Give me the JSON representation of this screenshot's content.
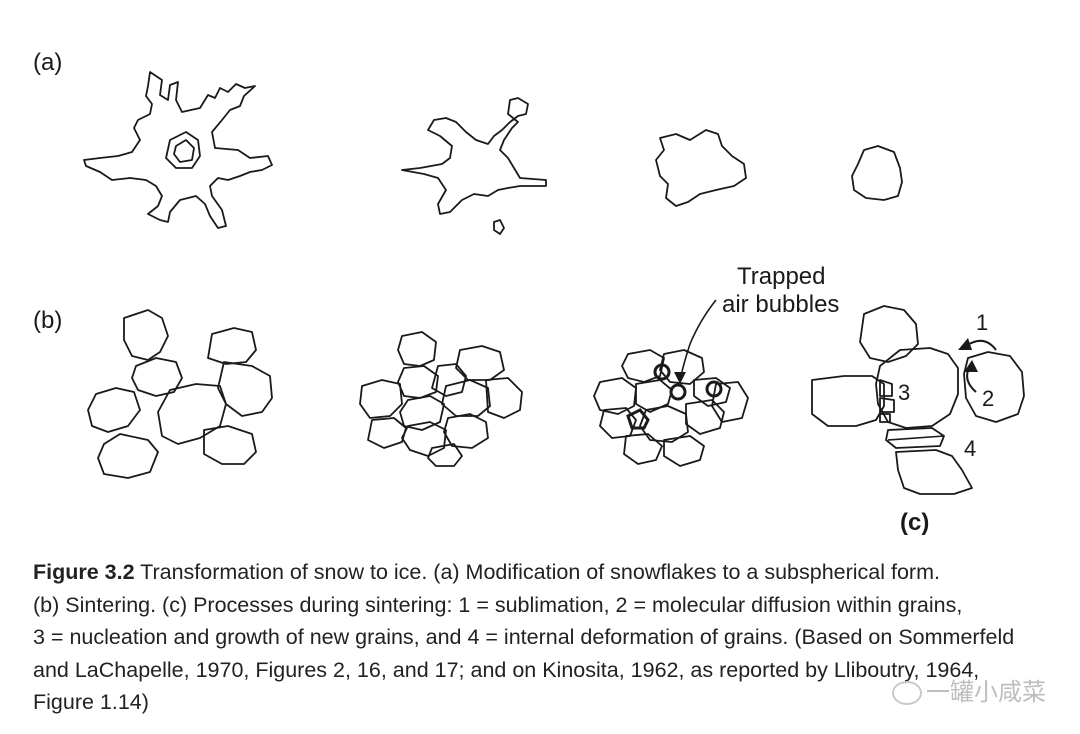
{
  "panels": {
    "a": "(a)",
    "b": "(b)",
    "c": "(c)"
  },
  "annotations": {
    "trapped_line1": "Trapped",
    "trapped_line2": "air bubbles",
    "proc1": "1",
    "proc2": "2",
    "proc3": "3",
    "proc4": "4"
  },
  "caption": {
    "label": "Figure 3.2",
    "line1": " Transformation of snow to ice. (a) Modification of snowflakes to a subspherical form.",
    "line2": "(b) Sintering. (c) Processes during sintering: 1 = sublimation, 2 = molecular diffusion within grains,",
    "line3": "3 = nucleation and growth of new grains, and 4 = internal deformation of grains. (Based on Sommerfeld",
    "line4": "and LaChapelle, 1970, Figures 2, 16, and 17; and on Kinosita, 1962, as reported by Lliboutry, 1964,",
    "line5": "Figure 1.14)"
  },
  "watermark": "一罐小咸菜"
}
